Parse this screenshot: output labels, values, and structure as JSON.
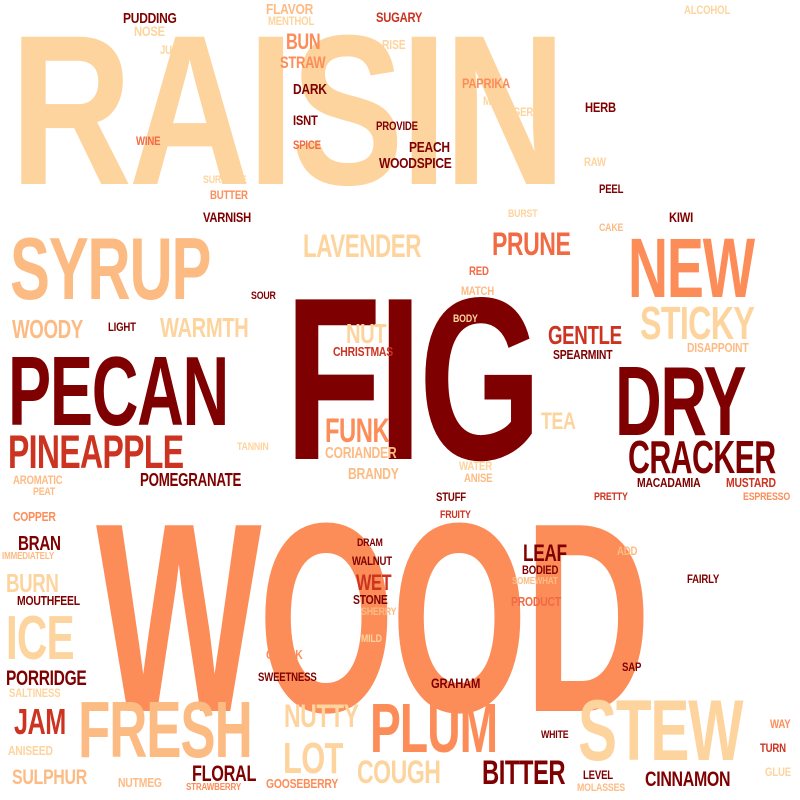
{
  "words": {
    "raisin": "RAISIN",
    "fig": "FIG",
    "wood": "WOOD",
    "pecan": "PECAN",
    "syrup": "SYRUP",
    "new": "NEW",
    "dry": "DRY",
    "fresh": "FRESH",
    "stew": "STEW",
    "plum": "PLUM",
    "ice": "ICE",
    "pineapple": "PINEAPPLE",
    "cracker": "CRACKER",
    "sticky": "STICKY",
    "prune": "PRUNE",
    "lavender": "LAVENDER",
    "funk": "FUNK",
    "bitter": "BITTER",
    "jam": "JAM",
    "lot": "LOT",
    "cough": "COUGH",
    "nutty": "NUTTY",
    "warmth": "WARMTH",
    "woody": "WOODY",
    "nut": "NUT",
    "gentle": "GENTLE",
    "porridge": "PORRIDGE",
    "burn": "BURN",
    "leaf": "LEAF",
    "wet": "WET",
    "floral": "FLORAL",
    "cinnamon": "CINNAMON",
    "sulphur": "SULPHUR",
    "bran": "BRAN",
    "pomegranate": "POMEGRANATE",
    "coriander": "CORIANDER",
    "brandy": "BRANDY",
    "tea": "TEA",
    "bun": "BUN",
    "straw": "STRAW",
    "pudding": "PUDDING",
    "flavor": "FLAVOR",
    "menthol": "MENTHOL",
    "nose": "NOSE",
    "juice": "JUICE",
    "sugary": "SUGARY",
    "rise": "RISE",
    "alcohol": "ALCOHOL",
    "dark": "DARK",
    "paprika": "PAPRIKA",
    "mind": "MIND",
    "linger": "LINGER",
    "herb": "HERB",
    "isnt": "ISNT",
    "provide": "PROVIDE",
    "wine": "WINE",
    "spice": "SPICE",
    "peach": "PEACH",
    "woodspice": "WOODSPICE",
    "raw": "RAW",
    "surprise": "SURPRISE",
    "butter": "BUTTER",
    "peel": "PEEL",
    "varnish": "VARNISH",
    "burst": "BURST",
    "cake": "CAKE",
    "kiwi": "KIWI",
    "red": "RED",
    "match": "MATCH",
    "sour": "SOUR",
    "light": "LIGHT",
    "body": "BODY",
    "christmas": "CHRISTMAS",
    "spearmint": "SPEARMINT",
    "disappoint": "DISAPPOINT",
    "tannin": "TANNIN",
    "water": "WATER",
    "anise": "ANISE",
    "aromatic": "AROMATIC",
    "peat": "PEAT",
    "macadamia": "MACADAMIA",
    "mustard": "MUSTARD",
    "espresso": "ESPRESSO",
    "stuff": "STUFF",
    "fruity": "FRUITY",
    "pretty": "PRETTY",
    "copper": "COPPER",
    "immediately": "IMMEDIATELY",
    "dram": "DRAM",
    "walnut": "WALNUT",
    "bodied": "BODIED",
    "somewhat": "SOMEWHAT",
    "add": "ADD",
    "fairly": "FAIRLY",
    "mouthfeel": "MOUTHFEEL",
    "stone": "STONE",
    "sherry": "SHERRY",
    "product": "PRODUCT",
    "mild": "MILD",
    "crack": "CRACK",
    "sweetness": "SWEETNESS",
    "saltiness": "SALTINESS",
    "graham": "GRAHAM",
    "sap": "SAP",
    "aniseed": "ANISEED",
    "white": "WHITE",
    "way": "WAY",
    "turn": "TURN",
    "nutmeg": "NUTMEG",
    "strawberry": "STRAWBERRY",
    "gooseberry": "GOOSEBERRY",
    "level": "LEVEL",
    "molasses": "MOLASSES",
    "glue": "GLUE"
  },
  "palette": [
    "#7f0000",
    "#cc3320",
    "#f16a43",
    "#fc8d59",
    "#fdbb84",
    "#fdd49e"
  ]
}
